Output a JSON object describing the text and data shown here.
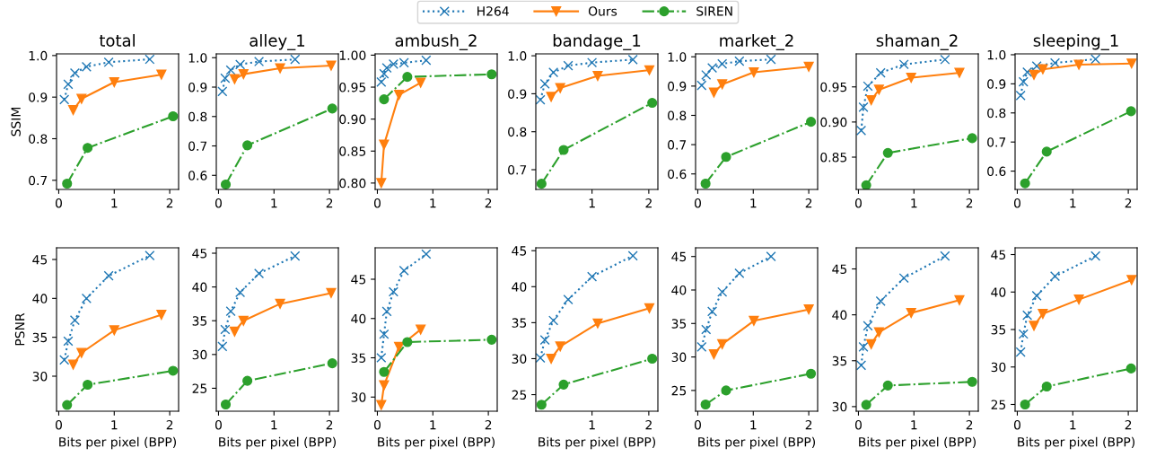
{
  "chart_data": [
    {
      "type": "line",
      "title": "total",
      "ylabel": "SSIM",
      "xlim": [
        -0.04,
        2.16
      ],
      "xticks": [
        0,
        1,
        2
      ],
      "ylim": [
        0.678,
        1.004
      ],
      "yticks": [
        0.7,
        0.8,
        0.9,
        {
          "value": 1.0,
          "label": "1.0"
        }
      ],
      "legend": "top",
      "grid": false,
      "series": [
        {
          "name": "H264",
          "color": "#1f77b4",
          "marker": "cross",
          "line_style": "dotted",
          "x": [
            0.1,
            0.17,
            0.29,
            0.5,
            0.9,
            1.64
          ],
          "values": [
            0.894,
            0.931,
            0.958,
            0.973,
            0.984,
            0.991
          ]
        },
        {
          "name": "Ours",
          "color": "#ff7f0e",
          "marker": "triangle",
          "line_style": "solid",
          "x": [
            0.26,
            0.41,
            1.0,
            1.85
          ],
          "values": [
            0.869,
            0.896,
            0.936,
            0.954
          ]
        },
        {
          "name": "SIREN",
          "color": "#2ca02c",
          "marker": "circle",
          "line_style": "dashdot",
          "x": [
            0.15,
            0.52,
            2.06
          ],
          "values": [
            0.692,
            0.778,
            0.854
          ]
        }
      ]
    },
    {
      "type": "line",
      "title": "alley_1",
      "xlim": [
        -0.04,
        2.16
      ],
      "xticks": [
        0,
        1,
        2
      ],
      "ylim": [
        0.552,
        1.013
      ],
      "yticks": [
        0.6,
        0.7,
        0.8,
        0.9,
        {
          "value": 1.0,
          "label": "1.0"
        }
      ],
      "grid": false,
      "series": [
        {
          "color": "#1f77b4",
          "marker": "cross",
          "line_style": "dotted",
          "x": [
            0.07,
            0.12,
            0.22,
            0.39,
            0.73,
            1.38
          ],
          "values": [
            0.885,
            0.93,
            0.958,
            0.977,
            0.987,
            0.994
          ]
        },
        {
          "color": "#ff7f0e",
          "marker": "triangle",
          "line_style": "solid",
          "x": [
            0.29,
            0.45,
            1.11,
            2.03
          ],
          "values": [
            0.927,
            0.944,
            0.964,
            0.973
          ]
        },
        {
          "color": "#2ca02c",
          "marker": "circle",
          "line_style": "dashdot",
          "x": [
            0.13,
            0.52,
            2.05
          ],
          "values": [
            0.569,
            0.702,
            0.827
          ]
        }
      ]
    },
    {
      "type": "line",
      "title": "ambush_2",
      "xlim": [
        -0.04,
        2.16
      ],
      "xticks": [
        0,
        1,
        2
      ],
      "ylim": [
        0.79,
        1.002
      ],
      "yticks": [
        {
          "value": 0.8,
          "label": "0.80"
        },
        {
          "value": 0.85,
          "label": "0.85"
        },
        {
          "value": 0.9,
          "label": "0.90"
        },
        {
          "value": 0.95,
          "label": "0.95"
        },
        {
          "value": 1.0,
          "label": "1.00"
        }
      ],
      "grid": false,
      "series": [
        {
          "color": "#1f77b4",
          "marker": "cross",
          "line_style": "dotted",
          "x": [
            0.07,
            0.12,
            0.17,
            0.29,
            0.48,
            0.88
          ],
          "values": [
            0.958,
            0.971,
            0.98,
            0.986,
            0.988,
            0.992
          ]
        },
        {
          "color": "#ff7f0e",
          "marker": "triangle",
          "line_style": "solid",
          "x": [
            0.07,
            0.12,
            0.39,
            0.78
          ],
          "values": [
            0.8,
            0.86,
            0.938,
            0.957
          ]
        },
        {
          "color": "#2ca02c",
          "marker": "circle",
          "line_style": "dashdot",
          "x": [
            0.12,
            0.54,
            2.06
          ],
          "values": [
            0.931,
            0.966,
            0.97
          ]
        }
      ]
    },
    {
      "type": "line",
      "title": "bandage_1",
      "xlim": [
        0.01,
        2.16
      ],
      "xticks": [
        1,
        2
      ],
      "ylim": [
        0.648,
        1.005
      ],
      "yticks": [
        0.7,
        0.8,
        0.9,
        {
          "value": 1.0,
          "label": "1.0"
        }
      ],
      "grid": false,
      "series": [
        {
          "color": "#1f77b4",
          "marker": "cross",
          "line_style": "dotted",
          "x": [
            0.09,
            0.17,
            0.32,
            0.58,
            1.0,
            1.72
          ],
          "values": [
            0.884,
            0.926,
            0.956,
            0.974,
            0.982,
            0.99
          ]
        },
        {
          "color": "#ff7f0e",
          "marker": "triangle",
          "line_style": "solid",
          "x": [
            0.28,
            0.44,
            1.1,
            2.01
          ],
          "values": [
            0.892,
            0.915,
            0.947,
            0.962
          ]
        },
        {
          "color": "#2ca02c",
          "marker": "circle",
          "line_style": "dashdot",
          "x": [
            0.11,
            0.5,
            2.06
          ],
          "values": [
            0.663,
            0.752,
            0.876
          ]
        }
      ]
    },
    {
      "type": "line",
      "title": "market_2",
      "xlim": [
        -0.04,
        2.16
      ],
      "xticks": [
        0,
        1,
        2
      ],
      "ylim": [
        0.547,
        1.01
      ],
      "yticks": [
        0.6,
        0.7,
        0.8,
        0.9,
        {
          "value": 1.0,
          "label": "1.0"
        }
      ],
      "grid": false,
      "series": [
        {
          "color": "#1f77b4",
          "marker": "cross",
          "line_style": "dotted",
          "x": [
            0.07,
            0.15,
            0.26,
            0.44,
            0.75,
            1.32
          ],
          "values": [
            0.902,
            0.938,
            0.962,
            0.976,
            0.985,
            0.991
          ]
        },
        {
          "color": "#ff7f0e",
          "marker": "triangle",
          "line_style": "solid",
          "x": [
            0.29,
            0.44,
            1.01,
            2.0
          ],
          "values": [
            0.878,
            0.906,
            0.947,
            0.966
          ]
        },
        {
          "color": "#2ca02c",
          "marker": "circle",
          "line_style": "dashdot",
          "x": [
            0.14,
            0.51,
            2.04
          ],
          "values": [
            0.567,
            0.658,
            0.778
          ]
        }
      ]
    },
    {
      "type": "line",
      "title": "shaman_2",
      "xlim": [
        -0.04,
        2.16
      ],
      "xticks": [
        0,
        1,
        2
      ],
      "ylim": [
        0.804,
        0.997
      ],
      "yticks": [
        {
          "value": 0.85,
          "label": "0.85"
        },
        {
          "value": 0.9,
          "label": "0.90"
        },
        {
          "value": 0.95,
          "label": "0.95"
        }
      ],
      "grid": false,
      "series": [
        {
          "color": "#1f77b4",
          "marker": "cross",
          "line_style": "dotted",
          "x": [
            0.05,
            0.09,
            0.17,
            0.4,
            0.82,
            1.56
          ],
          "values": [
            0.888,
            0.921,
            0.951,
            0.97,
            0.982,
            0.989
          ]
        },
        {
          "color": "#ff7f0e",
          "marker": "triangle",
          "line_style": "solid",
          "x": [
            0.23,
            0.37,
            0.95,
            1.82
          ],
          "values": [
            0.931,
            0.946,
            0.963,
            0.97
          ]
        },
        {
          "color": "#2ca02c",
          "marker": "circle",
          "line_style": "dashdot",
          "x": [
            0.14,
            0.53,
            2.05
          ],
          "values": [
            0.81,
            0.856,
            0.877
          ]
        }
      ]
    },
    {
      "type": "line",
      "title": "sleeping_1",
      "xlim": [
        -0.04,
        2.16
      ],
      "xticks": [
        0,
        1,
        2
      ],
      "ylim": [
        0.537,
        1.003
      ],
      "yticks": [
        0.6,
        0.7,
        0.8,
        0.9,
        {
          "value": 1.0,
          "label": "1.0"
        }
      ],
      "grid": false,
      "series": [
        {
          "color": "#1f77b4",
          "marker": "cross",
          "line_style": "dotted",
          "x": [
            0.06,
            0.11,
            0.18,
            0.35,
            0.68,
            1.41
          ],
          "values": [
            0.86,
            0.907,
            0.94,
            0.961,
            0.972,
            0.985
          ]
        },
        {
          "color": "#ff7f0e",
          "marker": "triangle",
          "line_style": "solid",
          "x": [
            0.3,
            0.46,
            1.11,
            2.06
          ],
          "values": [
            0.931,
            0.95,
            0.966,
            0.97
          ]
        },
        {
          "color": "#2ca02c",
          "marker": "circle",
          "line_style": "dashdot",
          "x": [
            0.14,
            0.53,
            2.05
          ],
          "values": [
            0.558,
            0.667,
            0.806
          ]
        }
      ]
    },
    {
      "type": "line",
      "ylabel": "PSNR",
      "xlabel": "Bits per pixel (BPP)",
      "xlim": [
        -0.04,
        2.16
      ],
      "xticks": [
        0,
        1,
        2
      ],
      "ylim": [
        25.5,
        46.5
      ],
      "yticks": [
        30,
        35,
        40,
        45
      ],
      "grid": false,
      "series": [
        {
          "color": "#1f77b4",
          "marker": "cross",
          "line_style": "dotted",
          "x": [
            0.1,
            0.17,
            0.29,
            0.5,
            0.9,
            1.64
          ],
          "values": [
            32.1,
            34.5,
            37.2,
            40.0,
            42.9,
            45.5
          ]
        },
        {
          "color": "#ff7f0e",
          "marker": "triangle",
          "line_style": "solid",
          "x": [
            0.26,
            0.41,
            1.0,
            1.85
          ],
          "values": [
            31.5,
            33.0,
            35.9,
            37.9
          ]
        },
        {
          "color": "#2ca02c",
          "marker": "circle",
          "line_style": "dashdot",
          "x": [
            0.15,
            0.52,
            2.06
          ],
          "values": [
            26.3,
            28.9,
            30.7
          ]
        }
      ]
    },
    {
      "type": "line",
      "xlabel": "Bits per pixel (BPP)",
      "xlim": [
        -0.04,
        2.16
      ],
      "xticks": [
        0,
        1,
        2
      ],
      "ylim": [
        21.6,
        45.8
      ],
      "yticks": [
        25,
        30,
        35,
        40,
        45
      ],
      "grid": false,
      "series": [
        {
          "color": "#1f77b4",
          "marker": "cross",
          "line_style": "dotted",
          "x": [
            0.07,
            0.12,
            0.22,
            0.39,
            0.73,
            1.38
          ],
          "values": [
            31.2,
            33.7,
            36.4,
            39.2,
            42.0,
            44.6
          ]
        },
        {
          "color": "#ff7f0e",
          "marker": "triangle",
          "line_style": "solid",
          "x": [
            0.29,
            0.45,
            1.11,
            2.03
          ],
          "values": [
            33.4,
            35.0,
            37.5,
            39.1
          ]
        },
        {
          "color": "#2ca02c",
          "marker": "circle",
          "line_style": "dashdot",
          "x": [
            0.13,
            0.52,
            2.05
          ],
          "values": [
            22.6,
            26.1,
            28.7
          ]
        }
      ]
    },
    {
      "type": "line",
      "xlabel": "Bits per pixel (BPP)",
      "xlim": [
        -0.04,
        2.16
      ],
      "xticks": [
        0,
        1,
        2
      ],
      "ylim": [
        28.2,
        49.0
      ],
      "yticks": [
        30,
        35,
        40,
        45
      ],
      "grid": false,
      "series": [
        {
          "color": "#1f77b4",
          "marker": "cross",
          "line_style": "dotted",
          "x": [
            0.07,
            0.12,
            0.17,
            0.29,
            0.48,
            0.88
          ],
          "values": [
            35.0,
            38.0,
            40.9,
            43.4,
            46.1,
            48.2
          ]
        },
        {
          "color": "#ff7f0e",
          "marker": "triangle",
          "line_style": "solid",
          "x": [
            0.07,
            0.12,
            0.39,
            0.78
          ],
          "values": [
            29.0,
            31.5,
            36.4,
            38.6
          ]
        },
        {
          "color": "#2ca02c",
          "marker": "circle",
          "line_style": "dashdot",
          "x": [
            0.12,
            0.54,
            2.06
          ],
          "values": [
            33.2,
            37.0,
            37.3
          ]
        }
      ]
    },
    {
      "type": "line",
      "xlabel": "Bits per pixel (BPP)",
      "xlim": [
        0.01,
        2.16
      ],
      "xticks": [
        1,
        2
      ],
      "ylim": [
        22.7,
        45.4
      ],
      "yticks": [
        25,
        30,
        35,
        40,
        45
      ],
      "grid": false,
      "series": [
        {
          "color": "#1f77b4",
          "marker": "cross",
          "line_style": "dotted",
          "x": [
            0.09,
            0.17,
            0.32,
            0.58,
            1.0,
            1.72
          ],
          "values": [
            30.1,
            32.6,
            35.3,
            38.2,
            41.4,
            44.3
          ]
        },
        {
          "color": "#ff7f0e",
          "marker": "triangle",
          "line_style": "solid",
          "x": [
            0.28,
            0.44,
            1.1,
            2.01
          ],
          "values": [
            30.0,
            31.7,
            34.9,
            37.0
          ]
        },
        {
          "color": "#2ca02c",
          "marker": "circle",
          "line_style": "dashdot",
          "x": [
            0.11,
            0.5,
            2.06
          ],
          "values": [
            23.6,
            26.4,
            30.0
          ]
        }
      ]
    },
    {
      "type": "line",
      "xlabel": "Bits per pixel (BPP)",
      "xlim": [
        -0.04,
        2.16
      ],
      "xticks": [
        0,
        1,
        2
      ],
      "ylim": [
        21.9,
        46.3
      ],
      "yticks": [
        25,
        30,
        35,
        40,
        45
      ],
      "grid": false,
      "series": [
        {
          "color": "#1f77b4",
          "marker": "cross",
          "line_style": "dotted",
          "x": [
            0.07,
            0.15,
            0.26,
            0.44,
            0.75,
            1.32
          ],
          "values": [
            31.5,
            34.1,
            36.8,
            39.7,
            42.5,
            45.0
          ]
        },
        {
          "color": "#ff7f0e",
          "marker": "triangle",
          "line_style": "solid",
          "x": [
            0.29,
            0.44,
            1.01,
            2.0
          ],
          "values": [
            30.4,
            31.9,
            35.4,
            37.1
          ]
        },
        {
          "color": "#2ca02c",
          "marker": "circle",
          "line_style": "dashdot",
          "x": [
            0.14,
            0.51,
            2.04
          ],
          "values": [
            22.9,
            25.0,
            27.5
          ]
        }
      ]
    },
    {
      "type": "line",
      "xlabel": "Bits per pixel (BPP)",
      "xlim": [
        -0.04,
        2.16
      ],
      "xticks": [
        0,
        1,
        2
      ],
      "ylim": [
        29.5,
        47.3
      ],
      "yticks": [
        30,
        35,
        40,
        45
      ],
      "grid": false,
      "series": [
        {
          "color": "#1f77b4",
          "marker": "cross",
          "line_style": "dotted",
          "x": [
            0.05,
            0.09,
            0.17,
            0.4,
            0.82,
            1.56
          ],
          "values": [
            34.5,
            36.5,
            38.8,
            41.5,
            44.0,
            46.4
          ]
        },
        {
          "color": "#ff7f0e",
          "marker": "triangle",
          "line_style": "solid",
          "x": [
            0.23,
            0.37,
            0.95,
            1.82
          ],
          "values": [
            36.8,
            38.1,
            40.2,
            41.6
          ]
        },
        {
          "color": "#2ca02c",
          "marker": "circle",
          "line_style": "dashdot",
          "x": [
            0.14,
            0.53,
            2.05
          ],
          "values": [
            30.2,
            32.3,
            32.7
          ]
        }
      ]
    },
    {
      "type": "line",
      "xlabel": "Bits per pixel (BPP)",
      "xlim": [
        -0.04,
        2.16
      ],
      "xticks": [
        0,
        1,
        2
      ],
      "ylim": [
        24.1,
        45.9
      ],
      "yticks": [
        25,
        30,
        35,
        40,
        45
      ],
      "grid": false,
      "series": [
        {
          "color": "#1f77b4",
          "marker": "cross",
          "line_style": "dotted",
          "x": [
            0.06,
            0.11,
            0.18,
            0.35,
            0.68,
            1.41
          ],
          "values": [
            32.0,
            34.4,
            36.9,
            39.5,
            42.1,
            44.8
          ]
        },
        {
          "color": "#ff7f0e",
          "marker": "triangle",
          "line_style": "solid",
          "x": [
            0.3,
            0.46,
            1.11,
            2.06
          ],
          "values": [
            35.5,
            37.1,
            39.0,
            41.6
          ]
        },
        {
          "color": "#2ca02c",
          "marker": "circle",
          "line_style": "dashdot",
          "x": [
            0.14,
            0.53,
            2.05
          ],
          "values": [
            25.0,
            27.4,
            29.8
          ]
        }
      ]
    }
  ]
}
